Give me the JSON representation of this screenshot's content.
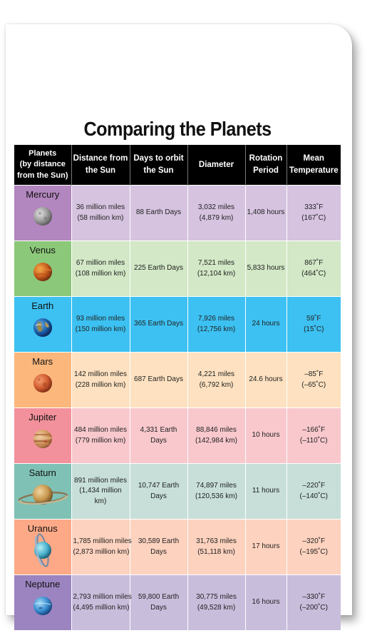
{
  "title": "Comparing the Planets",
  "headers": {
    "planet": [
      "Planets",
      "(by distance",
      "from the Sun)"
    ],
    "distance": [
      "Distance from",
      "the Sun"
    ],
    "orbit": [
      "Days to orbit",
      "the Sun"
    ],
    "diameter": [
      "Diameter"
    ],
    "rotation": [
      "Rotation",
      "Period"
    ],
    "temperature": [
      "Mean",
      "Temperature"
    ]
  },
  "planets": [
    {
      "name": "Mercury",
      "icon": "mercury-icon",
      "distance": [
        "36 million miles",
        "(58 million km)"
      ],
      "orbit": "88 Earth Days",
      "diameter": [
        "3,032 miles",
        "(4,879 km)"
      ],
      "rotation": "1,408 hours",
      "temperature": [
        "333˚F",
        "(167˚C)"
      ]
    },
    {
      "name": "Venus",
      "icon": "venus-icon",
      "distance": [
        "67 million miles",
        "(108 million km)"
      ],
      "orbit": "225 Earth Days",
      "diameter": [
        "7,521 miles",
        "(12,104 km)"
      ],
      "rotation": "5,833 hours",
      "temperature": [
        "867˚F",
        "(464˚C)"
      ]
    },
    {
      "name": "Earth",
      "icon": "earth-icon",
      "distance": [
        "93 million miles",
        "(150 million km)"
      ],
      "orbit": "365 Earth Days",
      "diameter": [
        "7,926 miles",
        "(12,756 km)"
      ],
      "rotation": "24 hours",
      "temperature": [
        "59˚F",
        "(15˚C)"
      ]
    },
    {
      "name": "Mars",
      "icon": "mars-icon",
      "distance": [
        "142 million miles",
        "(228 million km)"
      ],
      "orbit": "687 Earth Days",
      "diameter": [
        "4,221 miles",
        "(6,792 km)"
      ],
      "rotation": "24.6 hours",
      "temperature": [
        "–85˚F",
        "(–65˚C)"
      ]
    },
    {
      "name": "Jupiter",
      "icon": "jupiter-icon",
      "distance": [
        "484 million miles",
        "(779 million km)"
      ],
      "orbit": "4,331 Earth Days",
      "diameter": [
        "88,846 miles",
        "(142,984 km)"
      ],
      "rotation": "10 hours",
      "temperature": [
        "–166˚F",
        "(–110˚C)"
      ]
    },
    {
      "name": "Saturn",
      "icon": "saturn-icon",
      "distance": [
        "891 million miles",
        "(1,434 million km)"
      ],
      "orbit": "10,747 Earth Days",
      "diameter": [
        "74,897 miles",
        "(120,536 km)"
      ],
      "rotation": "11 hours",
      "temperature": [
        "–220˚F",
        "(–140˚C)"
      ]
    },
    {
      "name": "Uranus",
      "icon": "uranus-icon",
      "distance": [
        "1,785 million miles",
        "(2,873 million km)"
      ],
      "orbit": "30,589 Earth Days",
      "diameter": [
        "31,763 miles",
        "(51,118 km)"
      ],
      "rotation": "17 hours",
      "temperature": [
        "–320˚F",
        "(–195˚C)"
      ]
    },
    {
      "name": "Neptune",
      "icon": "neptune-icon",
      "distance": [
        "2,793 million miles",
        "(4,495 million km)"
      ],
      "orbit": "59,800 Earth Days",
      "diameter": [
        "30,775 miles",
        "(49,528 km)"
      ],
      "rotation": "16 hours",
      "temperature": [
        "–330˚F",
        "(–200˚C)"
      ]
    }
  ],
  "colors": {
    "header_bg": "#000000",
    "mercury": [
      "#b286be",
      "#d6c3e0"
    ],
    "venus": [
      "#8cc87a",
      "#d2e8c6"
    ],
    "earth": [
      "#3cc1f2",
      "#3cc1f2"
    ],
    "mars": [
      "#fbb77c",
      "#fde1c0"
    ],
    "jupiter": [
      "#f2919b",
      "#f8c8cd"
    ],
    "saturn": [
      "#7fc1b5",
      "#c7dfd8"
    ],
    "uranus": [
      "#fda987",
      "#fdd2be"
    ],
    "neptune": [
      "#9c84c0",
      "#c9bddc"
    ]
  }
}
